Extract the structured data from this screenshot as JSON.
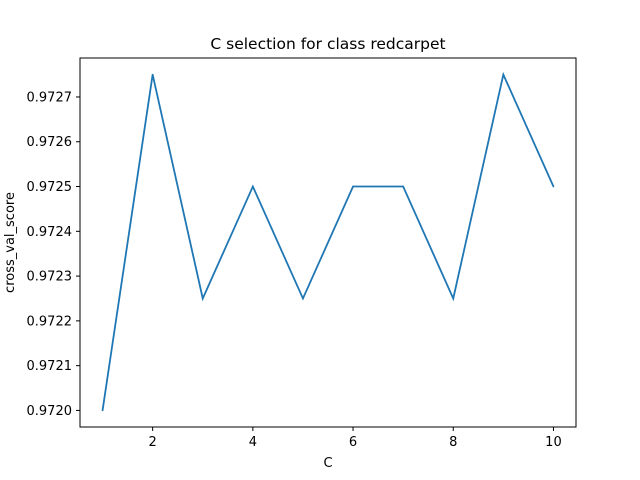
{
  "chart_data": {
    "type": "line",
    "title": "C selection for class redcarpet",
    "xlabel": "C",
    "ylabel": "cross_val_score",
    "x": [
      1,
      2,
      3,
      4,
      5,
      6,
      7,
      8,
      9,
      10
    ],
    "series": [
      {
        "values": [
          0.972,
          0.97275,
          0.97225,
          0.9725,
          0.97225,
          0.9725,
          0.9725,
          0.97225,
          0.97275,
          0.9725
        ],
        "color": "#1f77b4"
      }
    ],
    "xticks": [
      2,
      4,
      6,
      8,
      10
    ],
    "xtick_labels": [
      "2",
      "4",
      "6",
      "8",
      "10"
    ],
    "yticks": [
      0.972,
      0.9721,
      0.9722,
      0.9723,
      0.9724,
      0.9725,
      0.9726,
      0.9727
    ],
    "ytick_labels": [
      "0.9720",
      "0.9721",
      "0.9722",
      "0.9723",
      "0.9724",
      "0.9725",
      "0.9726",
      "0.9727"
    ],
    "xlim": [
      0.55,
      10.45
    ],
    "ylim": [
      0.971963,
      0.972787
    ],
    "grid": false,
    "legend": false
  }
}
